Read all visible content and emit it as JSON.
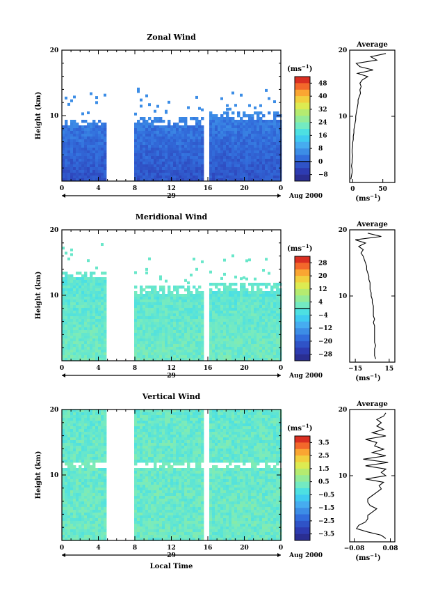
{
  "chart_data": [
    {
      "type": "heatmap",
      "title": "Zonal Wind",
      "ylabel": "Height (km)",
      "ylim": [
        0,
        20
      ],
      "y_ticks": [
        "10",
        "20"
      ],
      "x_ticks": [
        "0",
        "4",
        "8",
        "12",
        "16",
        "20",
        "0"
      ],
      "xlim": [
        0,
        24
      ],
      "day_label": "29",
      "date_label": "Aug 2000",
      "colorbar": {
        "unit": "(ms",
        "unit_sup": "−1",
        "unit_close": ")",
        "ticks": [
          "48",
          "40",
          "32",
          "24",
          "16",
          "8",
          "0",
          "−8"
        ],
        "range": [
          -12,
          52
        ],
        "zero_line": 0
      },
      "data_gaps": [
        [
          5.0,
          7.8
        ],
        [
          15.5,
          16.0
        ]
      ],
      "top_height_segments": [
        {
          "x0": 0,
          "x1": 5.0,
          "top": 9.5
        },
        {
          "x0": 7.8,
          "x1": 15.5,
          "top": 9.8
        },
        {
          "x0": 16.0,
          "x1": 24,
          "top": 10.6
        }
      ],
      "description_values": {
        "lower_wind": -2,
        "upper_wind": 10
      },
      "profile": {
        "title": "Average",
        "xlabel": "(ms",
        "xlabel_sup": "−1",
        "xlabel_close": ")",
        "x_ticks": [
          "0",
          "50"
        ],
        "x_tick_values": [
          0,
          50
        ],
        "xlim": [
          -5,
          70
        ],
        "y_ticks": [
          "10",
          "20"
        ],
        "heights": [
          0.5,
          1,
          1.5,
          2,
          2.5,
          3,
          3.5,
          4,
          4.5,
          5,
          5.5,
          6,
          6.5,
          7,
          7.5,
          8,
          8.5,
          9,
          9.5,
          10,
          10.5,
          11,
          11.5,
          12,
          12.5,
          13,
          13.5,
          14,
          14.5,
          15,
          15.5,
          16,
          16.5,
          17,
          17.5,
          18,
          18.5,
          19,
          19.5
        ],
        "values": [
          -3,
          -2,
          -1,
          -1,
          -2,
          -1,
          -1,
          0,
          -1,
          -1,
          0,
          0,
          1,
          1,
          2,
          2,
          3,
          4,
          5,
          5,
          6,
          7,
          8,
          9,
          9,
          11,
          13,
          12,
          14,
          12,
          16,
          25,
          8,
          34,
          12,
          6,
          40,
          30,
          55
        ]
      }
    },
    {
      "type": "heatmap",
      "title": "Meridional Wind",
      "ylabel": "Height (km)",
      "ylim": [
        0,
        20
      ],
      "y_ticks": [
        "10",
        "20"
      ],
      "x_ticks": [
        "0",
        "4",
        "8",
        "12",
        "16",
        "20",
        "0"
      ],
      "xlim": [
        0,
        24
      ],
      "day_label": "29",
      "date_label": "Aug 2000",
      "colorbar": {
        "unit": "(ms",
        "unit_sup": "−1",
        "unit_close": ")",
        "ticks": [
          "28",
          "20",
          "12",
          "4",
          "−4",
          "−12",
          "−20",
          "−28"
        ],
        "range": [
          -32,
          32
        ],
        "zero_line": 0
      },
      "data_gaps": [
        [
          5.0,
          7.8
        ],
        [
          15.5,
          16.0
        ]
      ],
      "top_height_segments": [
        {
          "x0": 0,
          "x1": 5.0,
          "top": 13.8
        },
        {
          "x0": 7.8,
          "x1": 15.5,
          "top": 11.5
        },
        {
          "x0": 16.0,
          "x1": 24,
          "top": 11.8
        }
      ],
      "description_values": {
        "lower_wind": 2,
        "upper_wind": -2
      },
      "profile": {
        "title": "Average",
        "xlabel": "(ms",
        "xlabel_sup": "−1",
        "xlabel_close": ")",
        "x_ticks": [
          "−15",
          "15"
        ],
        "x_tick_values": [
          -15,
          15
        ],
        "xlim": [
          -20,
          20
        ],
        "y_ticks": [
          "10",
          "20"
        ],
        "heights": [
          0.5,
          1,
          1.5,
          2,
          2.5,
          3,
          3.5,
          4,
          4.5,
          5,
          5.5,
          6,
          6.5,
          7,
          7.5,
          8,
          8.5,
          9,
          9.5,
          10,
          10.5,
          11,
          11.5,
          12,
          12.5,
          13,
          13.5,
          14,
          14.5,
          15,
          15.5,
          16,
          16.5,
          17,
          17.5,
          18,
          18.5,
          19,
          19.5
        ],
        "values": [
          3,
          2,
          2,
          2,
          3,
          2,
          2,
          2,
          2,
          2,
          2,
          1,
          2,
          1,
          1,
          1,
          1,
          0,
          0,
          -1,
          -1,
          -2,
          -2,
          -2,
          -3,
          -3,
          -4,
          -5,
          -5,
          -6,
          -7,
          -8,
          -10,
          -8,
          -12,
          -6,
          -15,
          8,
          -4
        ]
      }
    },
    {
      "type": "heatmap",
      "title": "Vertical Wind",
      "xlabel": "Local Time",
      "ylabel": "Height (km)",
      "ylim": [
        0,
        20
      ],
      "y_ticks": [
        "10",
        "20"
      ],
      "x_ticks": [
        "0",
        "4",
        "8",
        "12",
        "16",
        "20",
        "0"
      ],
      "xlim": [
        0,
        24
      ],
      "day_label": "29",
      "date_label": "Aug 2000",
      "colorbar": {
        "unit": "(ms",
        "unit_sup": "−1",
        "unit_close": ")",
        "ticks": [
          "3.5",
          "2.5",
          "1.5",
          "0.5",
          "−0.5",
          "−1.5",
          "−2.5",
          "−3.5"
        ],
        "range": [
          -4,
          4
        ]
      },
      "data_gaps": [
        [
          5.0,
          7.8
        ],
        [
          15.5,
          16.0
        ]
      ],
      "top_height_segments": [
        {
          "x0": 0,
          "x1": 5.0,
          "top": 20
        },
        {
          "x0": 7.8,
          "x1": 15.5,
          "top": 20
        },
        {
          "x0": 16.0,
          "x1": 24,
          "top": 20
        }
      ],
      "description_values": {
        "lower_wind": 0.2,
        "upper_wind": 0.1
      },
      "profile": {
        "title": "Average",
        "xlabel": "(ms",
        "xlabel_sup": "−1",
        "xlabel_close": ")",
        "x_ticks": [
          "−0.08",
          "0.08"
        ],
        "x_tick_values": [
          -0.08,
          0.08
        ],
        "xlim": [
          -0.1,
          0.1
        ],
        "y_ticks": [
          "10",
          "20"
        ],
        "heights": [
          0.5,
          1,
          1.5,
          2,
          2.5,
          3,
          3.5,
          4,
          4.5,
          5,
          5.5,
          6,
          6.5,
          7,
          7.5,
          8,
          8.5,
          9,
          9.5,
          10,
          10.5,
          11,
          11.5,
          12,
          12.5,
          13,
          13.5,
          14,
          14.5,
          15,
          15.5,
          16,
          16.5,
          17,
          17.5,
          18,
          18.5,
          19,
          19.5
        ],
        "values": [
          0.06,
          0.04,
          -0.02,
          -0.07,
          -0.06,
          -0.03,
          -0.02,
          -0.02,
          0.0,
          0.02,
          -0.01,
          -0.02,
          -0.02,
          0.0,
          0.02,
          0.04,
          0.03,
          0.05,
          -0.03,
          0.06,
          0.04,
          0.06,
          -0.03,
          0.07,
          -0.04,
          0.06,
          0.0,
          0.05,
          0.01,
          0.02,
          -0.03,
          0.06,
          0.0,
          0.05,
          0.02,
          0.04,
          0.02,
          0.05,
          0.06
        ]
      }
    }
  ]
}
